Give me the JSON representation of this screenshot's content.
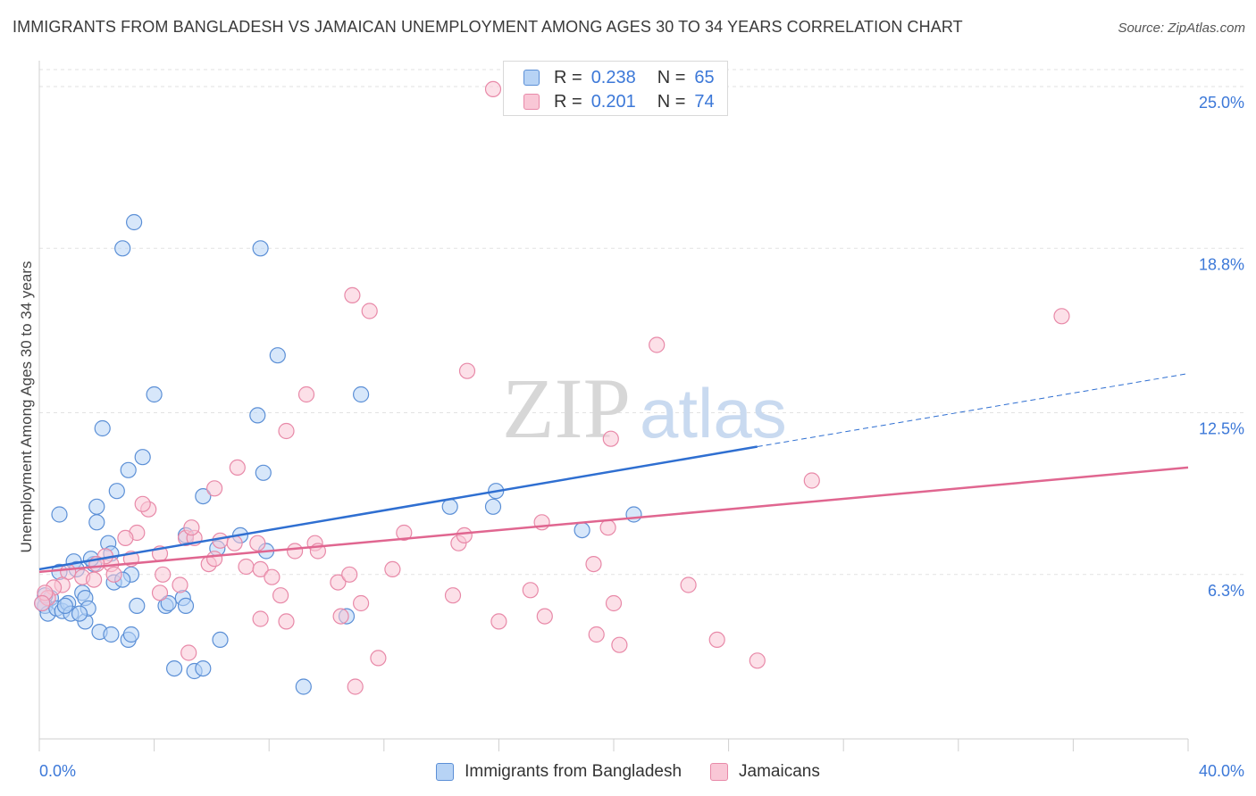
{
  "header": {
    "title": "IMMIGRANTS FROM BANGLADESH VS JAMAICAN UNEMPLOYMENT AMONG AGES 30 TO 34 YEARS CORRELATION CHART",
    "source": "Source: ZipAtlas.com"
  },
  "watermark": {
    "zip": "ZIP",
    "atlas": "atlas"
  },
  "legend_top": {
    "r_key": "R =",
    "n_key": "N =",
    "rows": [
      {
        "r_value": "0.238",
        "n_value": "65"
      },
      {
        "r_value": "0.201",
        "n_value": "74"
      }
    ]
  },
  "legend_bottom": {
    "items": [
      "Immigrants from Bangladesh",
      "Jamaicans"
    ]
  },
  "colors": {
    "blue_fill": "#b7d3f5",
    "blue_stroke": "#5b8fd6",
    "blue_line": "#2f6fd1",
    "pink_fill": "#f9c7d6",
    "pink_stroke": "#e889a8",
    "pink_line": "#e06690",
    "tick_label": "#3c78d8",
    "grid": "#e2e2e2"
  },
  "chart_data": {
    "type": "scatter",
    "title": "IMMIGRANTS FROM BANGLADESH VS JAMAICAN UNEMPLOYMENT AMONG AGES 30 TO 34 YEARS CORRELATION CHART",
    "xlabel": "",
    "ylabel": "Unemployment Among Ages 30 to 34 years",
    "xlim": [
      0,
      40
    ],
    "ylim": [
      0,
      25
    ],
    "x_tick_labels": [
      "0.0%",
      "40.0%"
    ],
    "y_ticks": [
      6.3,
      12.5,
      18.8,
      25.0
    ],
    "y_tick_labels": [
      "6.3%",
      "12.5%",
      "18.8%",
      "25.0%"
    ],
    "grid": true,
    "legend_position": "top-center",
    "series": [
      {
        "name": "Immigrants from Bangladesh",
        "r": 0.238,
        "n": 65,
        "trend": {
          "x0": 0.0,
          "y0": 6.5,
          "x1": 25.0,
          "y1": 11.2,
          "dashed_to_x": 40.0,
          "dashed_to_y": 14.0
        },
        "points": [
          [
            3.3,
            19.8
          ],
          [
            2.9,
            18.8
          ],
          [
            7.7,
            18.8
          ],
          [
            8.3,
            14.7
          ],
          [
            11.2,
            13.2
          ],
          [
            4.0,
            13.2
          ],
          [
            7.6,
            12.4
          ],
          [
            2.2,
            11.9
          ],
          [
            3.6,
            10.8
          ],
          [
            3.1,
            10.3
          ],
          [
            7.8,
            10.2
          ],
          [
            2.7,
            9.5
          ],
          [
            5.7,
            9.3
          ],
          [
            0.7,
            8.6
          ],
          [
            2.0,
            8.3
          ],
          [
            2.0,
            8.9
          ],
          [
            5.1,
            7.8
          ],
          [
            2.4,
            7.5
          ],
          [
            7.0,
            7.8
          ],
          [
            15.9,
            9.5
          ],
          [
            14.3,
            8.9
          ],
          [
            15.8,
            8.9
          ],
          [
            20.7,
            8.6
          ],
          [
            18.9,
            8.0
          ],
          [
            6.2,
            7.3
          ],
          [
            7.9,
            7.2
          ],
          [
            1.2,
            6.8
          ],
          [
            1.9,
            6.7
          ],
          [
            2.5,
            7.1
          ],
          [
            0.7,
            6.4
          ],
          [
            1.3,
            6.5
          ],
          [
            1.8,
            6.9
          ],
          [
            2.6,
            6.0
          ],
          [
            3.2,
            6.3
          ],
          [
            1.5,
            5.6
          ],
          [
            1.6,
            5.4
          ],
          [
            0.4,
            5.4
          ],
          [
            0.2,
            5.1
          ],
          [
            0.3,
            4.8
          ],
          [
            0.6,
            5.0
          ],
          [
            0.8,
            4.9
          ],
          [
            1.0,
            5.2
          ],
          [
            1.1,
            4.8
          ],
          [
            1.6,
            4.5
          ],
          [
            1.7,
            5.0
          ],
          [
            3.4,
            5.1
          ],
          [
            4.4,
            5.1
          ],
          [
            4.5,
            5.2
          ],
          [
            5.0,
            5.4
          ],
          [
            5.1,
            5.1
          ],
          [
            2.1,
            4.1
          ],
          [
            2.5,
            4.0
          ],
          [
            3.1,
            3.8
          ],
          [
            3.2,
            4.0
          ],
          [
            6.3,
            3.8
          ],
          [
            4.7,
            2.7
          ],
          [
            5.4,
            2.6
          ],
          [
            5.7,
            2.7
          ],
          [
            9.2,
            2.0
          ],
          [
            10.7,
            4.7
          ],
          [
            0.2,
            5.5
          ],
          [
            1.4,
            4.8
          ],
          [
            0.9,
            5.1
          ],
          [
            0.1,
            5.2
          ],
          [
            2.9,
            6.1
          ]
        ]
      },
      {
        "name": "Jamaicans",
        "r": 0.201,
        "n": 74,
        "trend": {
          "x0": 0.0,
          "y0": 6.4,
          "x1": 40.0,
          "y1": 10.4
        },
        "points": [
          [
            15.8,
            24.9
          ],
          [
            10.9,
            17.0
          ],
          [
            11.5,
            16.4
          ],
          [
            35.6,
            16.2
          ],
          [
            21.5,
            15.1
          ],
          [
            14.9,
            14.1
          ],
          [
            9.3,
            13.2
          ],
          [
            8.6,
            11.8
          ],
          [
            19.9,
            11.5
          ],
          [
            6.9,
            10.4
          ],
          [
            6.1,
            9.6
          ],
          [
            26.9,
            9.9
          ],
          [
            3.8,
            8.8
          ],
          [
            3.6,
            9.0
          ],
          [
            3.4,
            7.9
          ],
          [
            3.0,
            7.7
          ],
          [
            5.1,
            7.7
          ],
          [
            5.4,
            7.7
          ],
          [
            5.3,
            8.1
          ],
          [
            6.3,
            7.6
          ],
          [
            6.8,
            7.5
          ],
          [
            7.6,
            7.5
          ],
          [
            9.6,
            7.5
          ],
          [
            9.7,
            7.2
          ],
          [
            8.9,
            7.2
          ],
          [
            12.7,
            7.9
          ],
          [
            14.6,
            7.5
          ],
          [
            14.8,
            7.8
          ],
          [
            17.5,
            8.3
          ],
          [
            19.8,
            8.1
          ],
          [
            4.2,
            7.1
          ],
          [
            3.2,
            6.9
          ],
          [
            2.5,
            6.7
          ],
          [
            2.3,
            7.0
          ],
          [
            2.0,
            6.7
          ],
          [
            1.5,
            6.2
          ],
          [
            1.0,
            6.4
          ],
          [
            0.8,
            5.9
          ],
          [
            0.5,
            5.8
          ],
          [
            0.3,
            5.4
          ],
          [
            0.2,
            5.6
          ],
          [
            0.1,
            5.2
          ],
          [
            1.9,
            6.1
          ],
          [
            2.6,
            6.3
          ],
          [
            4.3,
            6.3
          ],
          [
            4.9,
            5.9
          ],
          [
            4.2,
            5.6
          ],
          [
            5.9,
            6.7
          ],
          [
            6.1,
            6.9
          ],
          [
            7.2,
            6.6
          ],
          [
            7.7,
            6.5
          ],
          [
            8.1,
            6.2
          ],
          [
            10.4,
            6.0
          ],
          [
            10.8,
            6.3
          ],
          [
            12.3,
            6.5
          ],
          [
            14.4,
            5.5
          ],
          [
            17.1,
            5.7
          ],
          [
            19.3,
            6.7
          ],
          [
            22.6,
            5.9
          ],
          [
            20.0,
            5.2
          ],
          [
            11.2,
            5.2
          ],
          [
            8.4,
            5.5
          ],
          [
            7.7,
            4.6
          ],
          [
            8.6,
            4.5
          ],
          [
            10.5,
            4.7
          ],
          [
            16.0,
            4.5
          ],
          [
            17.6,
            4.7
          ],
          [
            19.4,
            4.0
          ],
          [
            20.2,
            3.6
          ],
          [
            23.6,
            3.8
          ],
          [
            25.0,
            3.0
          ],
          [
            11.8,
            3.1
          ],
          [
            5.2,
            3.3
          ],
          [
            11.0,
            2.0
          ]
        ]
      }
    ]
  }
}
